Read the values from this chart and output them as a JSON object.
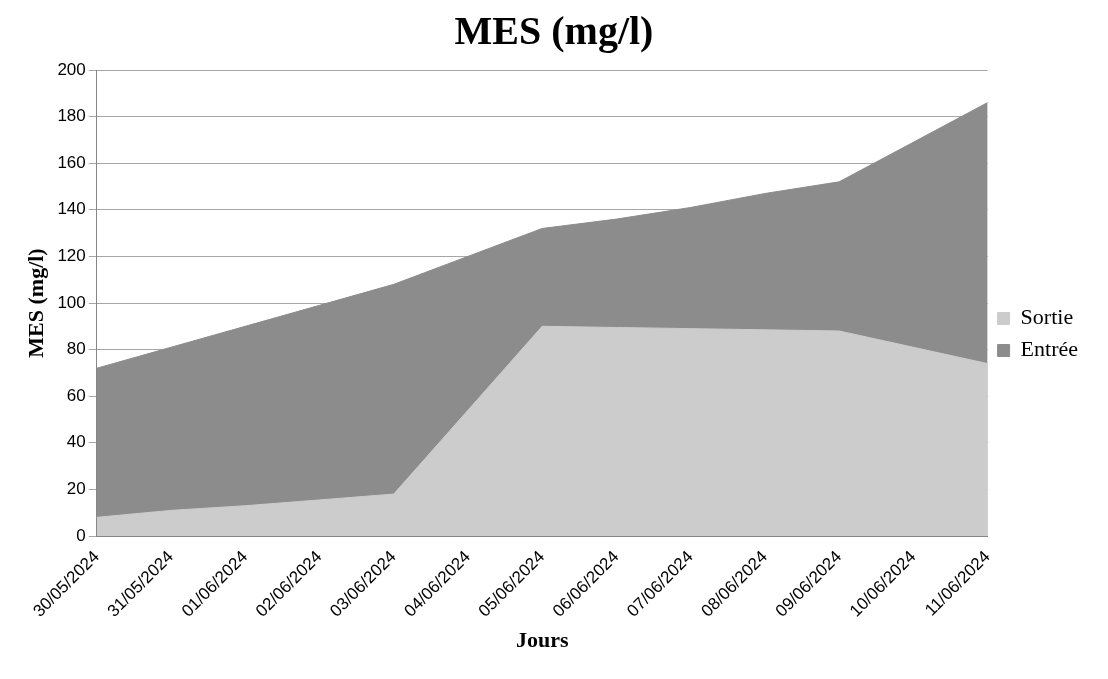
{
  "chart_data": {
    "type": "area",
    "title": "MES (mg/l)",
    "xlabel": "Jours",
    "ylabel": "MES (mg/l)",
    "categories": [
      "30/05/2024",
      "31/05/2024",
      "01/06/2024",
      "02/06/2024",
      "03/06/2024",
      "04/06/2024",
      "05/06/2024",
      "06/06/2024",
      "07/06/2024",
      "08/06/2024",
      "09/06/2024",
      "10/06/2024",
      "11/06/2024"
    ],
    "series": [
      {
        "name": "Entrée",
        "color": "#8c8c8c",
        "values": [
          72,
          81,
          90,
          99,
          108,
          120,
          132,
          136,
          141,
          147,
          152,
          169,
          186
        ]
      },
      {
        "name": "Sortie",
        "color": "#cccccc",
        "values": [
          8,
          11,
          13,
          15.5,
          18,
          54,
          90,
          89.5,
          89,
          88.5,
          88,
          81,
          74
        ]
      }
    ],
    "ylim": [
      0,
      200
    ],
    "yticks": [
      0,
      20,
      40,
      60,
      80,
      100,
      120,
      140,
      160,
      180,
      200
    ],
    "grid": "y",
    "legend": "right"
  }
}
